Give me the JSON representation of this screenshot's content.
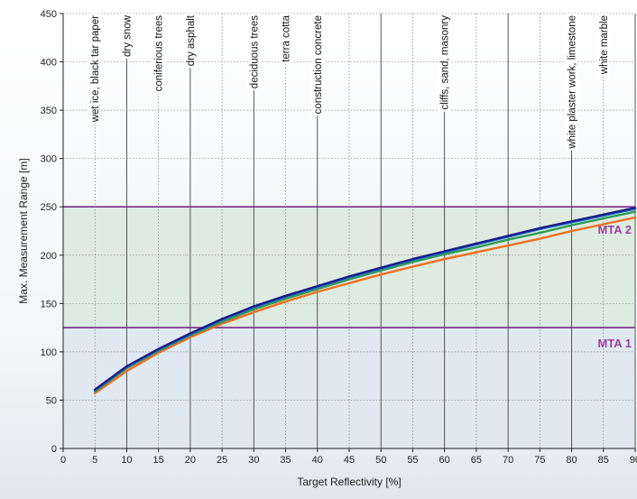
{
  "chart_data": {
    "type": "line",
    "xlabel": "Target Reflectivity [%]",
    "ylabel": "Max. Measurement Range [m]",
    "xlim": [
      0,
      90
    ],
    "ylim": [
      0,
      450
    ],
    "x_ticks": [
      0,
      5,
      10,
      15,
      20,
      25,
      30,
      35,
      40,
      45,
      50,
      55,
      60,
      65,
      70,
      75,
      80,
      85,
      90
    ],
    "y_ticks": [
      0,
      50,
      100,
      150,
      200,
      250,
      300,
      350,
      400,
      450
    ],
    "x_tick_labels": [
      "0",
      "5",
      "10",
      "15",
      "20",
      "25",
      "30",
      "35",
      "40",
      "45",
      "50",
      "55",
      "60",
      "65",
      "70",
      "75",
      "80",
      "85",
      "90"
    ],
    "y_tick_labels": [
      "0",
      "50",
      "100",
      "150",
      "200",
      "250",
      "300",
      "350",
      "400",
      "450"
    ],
    "grid": true,
    "bands": [
      {
        "label": "MTA 1",
        "from": 0,
        "to": 125,
        "color": "#dde6f0"
      },
      {
        "label": "MTA 2",
        "from": 125,
        "to": 250,
        "color": "#dbe9dc"
      }
    ],
    "band_lines": [
      {
        "y": 125,
        "color": "#7a2a8c"
      },
      {
        "y": 250,
        "color": "#7a2a8c"
      }
    ],
    "materials": [
      {
        "label": "wet  ice, black tar paper",
        "x": 5
      },
      {
        "label": "dry snow",
        "x": 10
      },
      {
        "label": "coniferious trees",
        "x": 15
      },
      {
        "label": "dry asphalt",
        "x": 20
      },
      {
        "label": "deciduous trees",
        "x": 30
      },
      {
        "label": "terra cotta",
        "x": 35
      },
      {
        "label": "construction concrete",
        "x": 40
      },
      {
        "label": "cliffs, sand, masonry",
        "x": 60
      },
      {
        "label": "white plaster work, limestone",
        "x": 80
      },
      {
        "label": "white marble",
        "x": 85
      }
    ],
    "x": [
      5,
      10,
      15,
      20,
      25,
      30,
      35,
      40,
      45,
      50,
      55,
      60,
      65,
      70,
      75,
      80,
      85,
      90
    ],
    "series": [
      {
        "color": "#1a1a8c",
        "values": [
          61,
          85,
          103,
          119,
          134,
          147,
          158,
          168,
          178,
          187,
          196,
          204,
          212,
          220,
          228,
          235,
          242,
          249
        ]
      },
      {
        "color": "#1e78c8",
        "values": [
          60,
          84,
          102,
          118,
          133,
          146,
          157,
          167,
          177,
          186,
          195,
          203,
          211,
          219,
          227,
          234,
          241,
          248
        ]
      },
      {
        "color": "#2e9a5a",
        "values": [
          59,
          83,
          101,
          117,
          131,
          144,
          155,
          165,
          175,
          184,
          193,
          201,
          208,
          216,
          223,
          231,
          238,
          245
        ]
      },
      {
        "color": "#f07020",
        "values": [
          57,
          80,
          99,
          115,
          129,
          141,
          152,
          162,
          171,
          180,
          188,
          196,
          203,
          210,
          217,
          225,
          232,
          239
        ]
      }
    ]
  }
}
